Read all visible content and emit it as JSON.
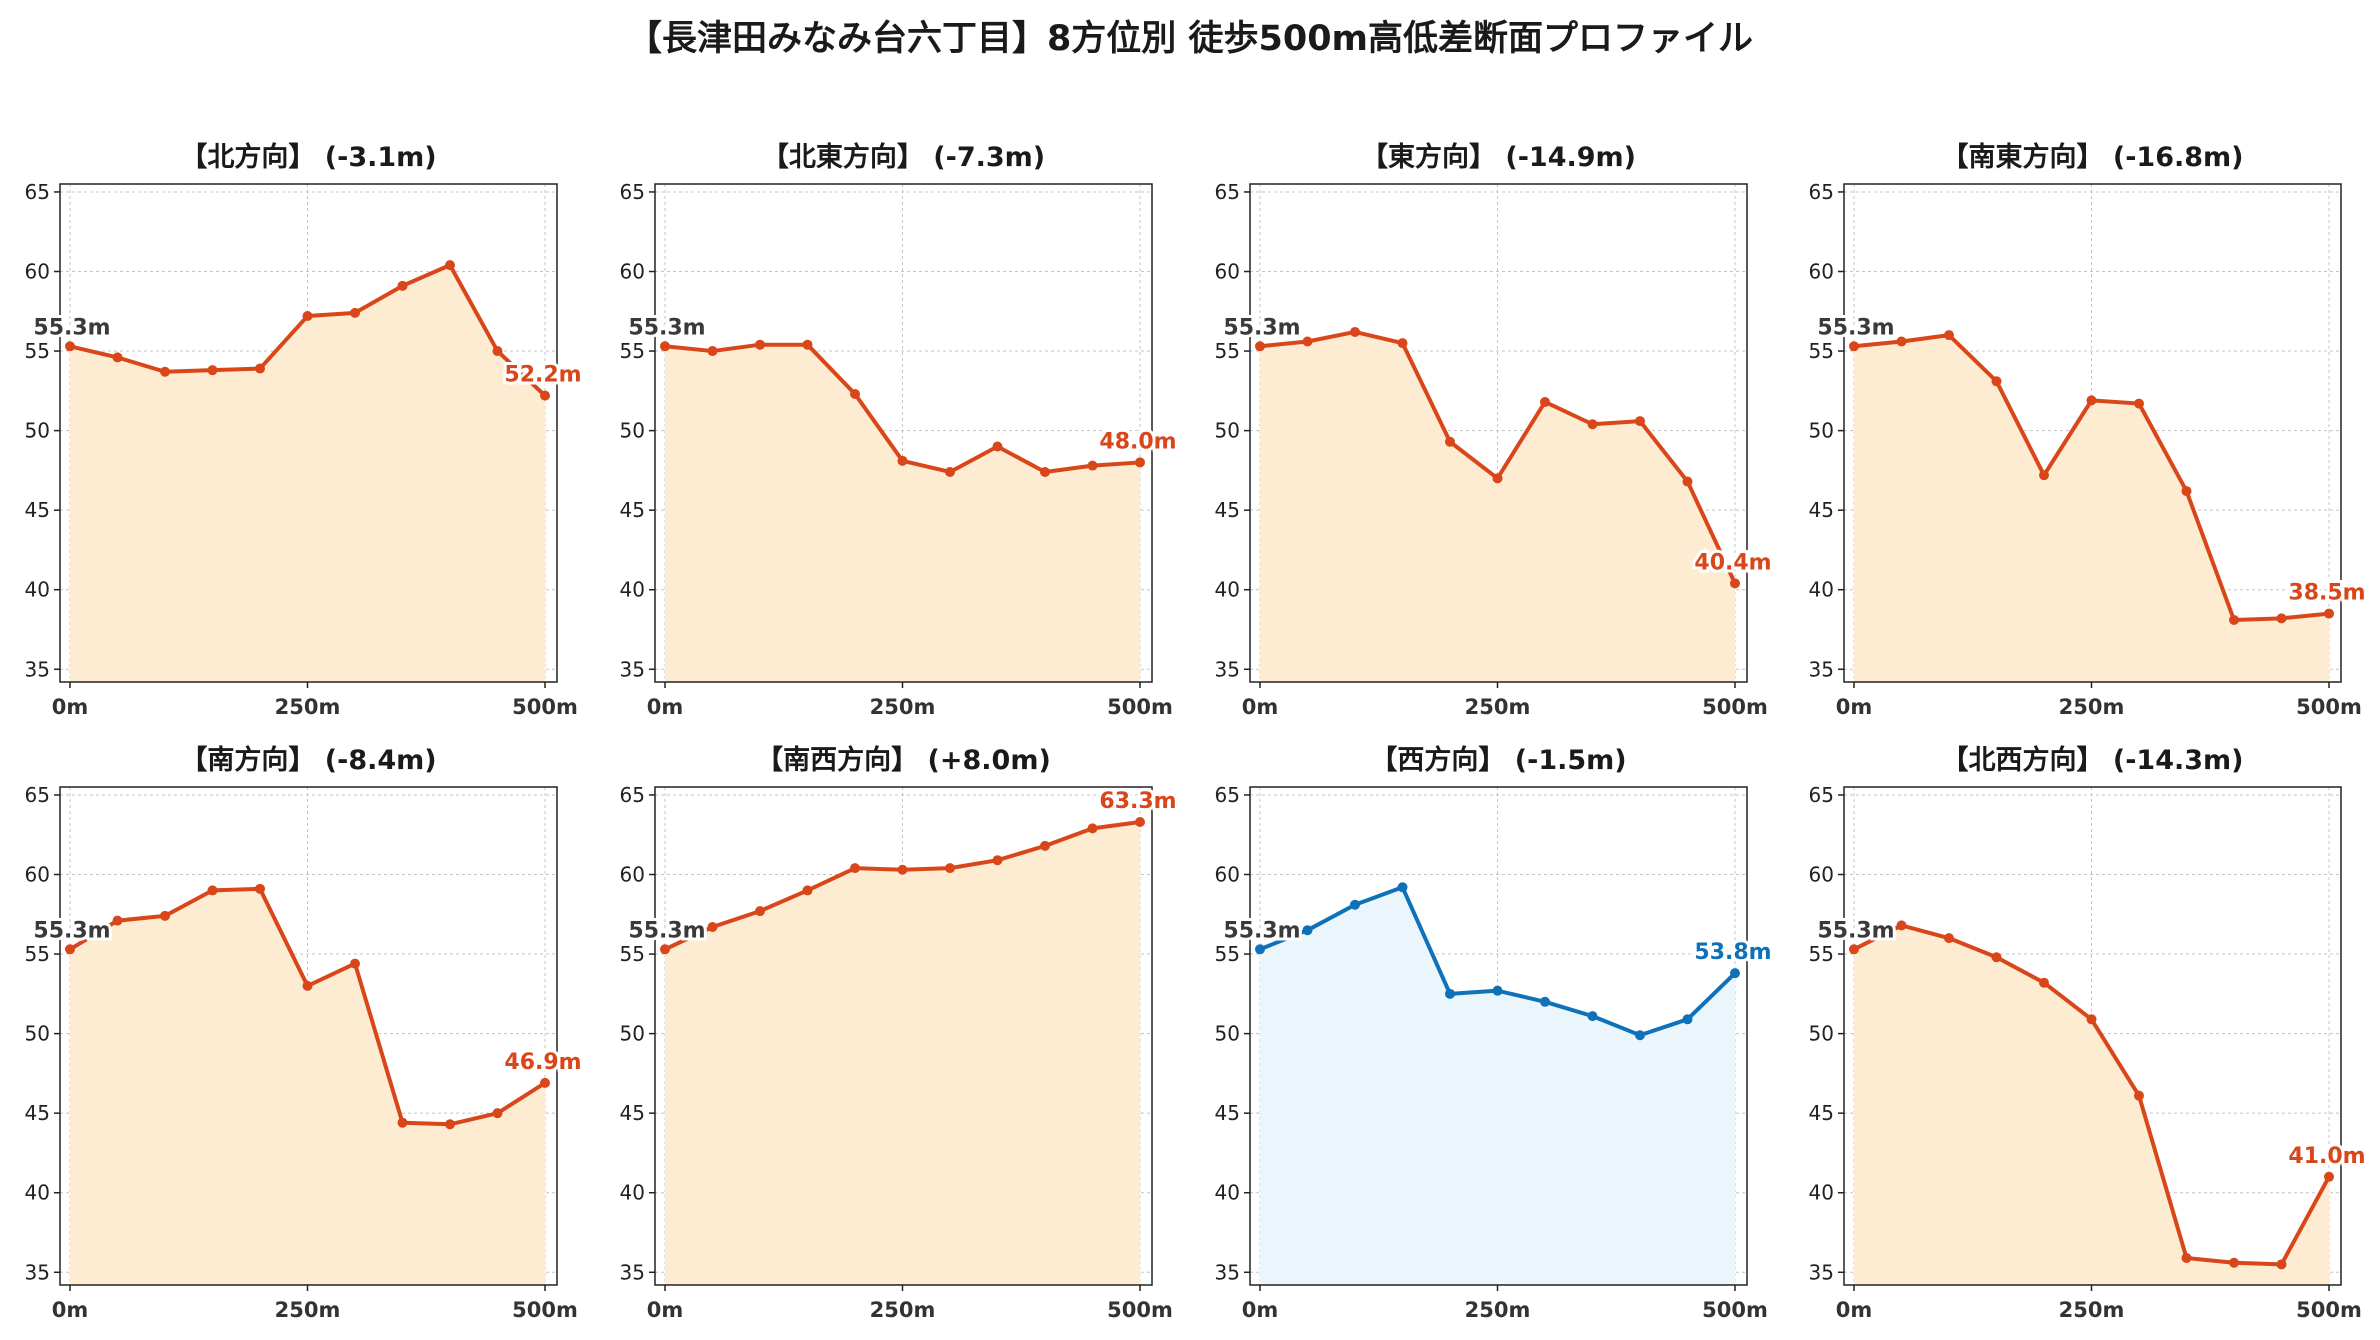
{
  "title": "【長津田みなみ台六丁目】8方位別 徒歩500m高低差断面プロファイル",
  "colors": {
    "descent": "#d9461a",
    "descent_fill": "#fdecd2",
    "ascent_flat": "#0f72b8",
    "ascent_fill": "#eaf6fc",
    "start_label": "#3a3a3a"
  },
  "chart_data": [
    {
      "type": "area",
      "title": "【北方向】 (-3.1m)",
      "x": [
        0,
        50,
        100,
        150,
        200,
        250,
        300,
        350,
        400,
        450,
        500
      ],
      "xtick_labels": [
        "0m",
        "250m",
        "500m"
      ],
      "xticks": [
        0,
        250,
        500
      ],
      "yticks": [
        35,
        40,
        45,
        50,
        55,
        60,
        65
      ],
      "ylim": [
        34.2,
        65.5
      ],
      "grid": true,
      "values": [
        55.3,
        54.6,
        53.7,
        53.8,
        53.9,
        57.2,
        57.4,
        59.1,
        60.4,
        55.0,
        52.2
      ],
      "start_label": "55.3m",
      "end_label": "52.2m",
      "style": "descent"
    },
    {
      "type": "area",
      "title": "【北東方向】 (-7.3m)",
      "x": [
        0,
        50,
        100,
        150,
        200,
        250,
        300,
        350,
        400,
        450,
        500
      ],
      "xtick_labels": [
        "0m",
        "250m",
        "500m"
      ],
      "xticks": [
        0,
        250,
        500
      ],
      "yticks": [
        35,
        40,
        45,
        50,
        55,
        60,
        65
      ],
      "ylim": [
        34.2,
        65.5
      ],
      "grid": true,
      "values": [
        55.3,
        55.0,
        55.4,
        55.4,
        52.3,
        48.1,
        47.4,
        49.0,
        47.4,
        47.8,
        48.0
      ],
      "start_label": "55.3m",
      "end_label": "48.0m",
      "style": "descent"
    },
    {
      "type": "area",
      "title": "【東方向】 (-14.9m)",
      "x": [
        0,
        50,
        100,
        150,
        200,
        250,
        300,
        350,
        400,
        450,
        500
      ],
      "xtick_labels": [
        "0m",
        "250m",
        "500m"
      ],
      "xticks": [
        0,
        250,
        500
      ],
      "yticks": [
        35,
        40,
        45,
        50,
        55,
        60,
        65
      ],
      "ylim": [
        34.2,
        65.5
      ],
      "grid": true,
      "values": [
        55.3,
        55.6,
        56.2,
        55.5,
        49.3,
        47.0,
        51.8,
        50.4,
        50.6,
        46.8,
        40.4
      ],
      "start_label": "55.3m",
      "end_label": "40.4m",
      "style": "descent"
    },
    {
      "type": "area",
      "title": "【南東方向】 (-16.8m)",
      "x": [
        0,
        50,
        100,
        150,
        200,
        250,
        300,
        350,
        400,
        450,
        500
      ],
      "xtick_labels": [
        "0m",
        "250m",
        "500m"
      ],
      "xticks": [
        0,
        250,
        500
      ],
      "yticks": [
        35,
        40,
        45,
        50,
        55,
        60,
        65
      ],
      "ylim": [
        34.2,
        65.5
      ],
      "grid": true,
      "values": [
        55.3,
        55.6,
        56.0,
        53.1,
        47.2,
        51.9,
        51.7,
        46.2,
        38.1,
        38.2,
        38.5
      ],
      "start_label": "55.3m",
      "end_label": "38.5m",
      "style": "descent"
    },
    {
      "type": "area",
      "title": "【南方向】 (-8.4m)",
      "x": [
        0,
        50,
        100,
        150,
        200,
        250,
        300,
        350,
        400,
        450,
        500
      ],
      "xtick_labels": [
        "0m",
        "250m",
        "500m"
      ],
      "xticks": [
        0,
        250,
        500
      ],
      "yticks": [
        35,
        40,
        45,
        50,
        55,
        60,
        65
      ],
      "ylim": [
        34.2,
        65.5
      ],
      "grid": true,
      "values": [
        55.3,
        57.1,
        57.4,
        59.0,
        59.1,
        53.0,
        54.4,
        44.4,
        44.3,
        45.0,
        46.9
      ],
      "start_label": "55.3m",
      "end_label": "46.9m",
      "style": "descent"
    },
    {
      "type": "area",
      "title": "【南西方向】 (+8.0m)",
      "x": [
        0,
        50,
        100,
        150,
        200,
        250,
        300,
        350,
        400,
        450,
        500
      ],
      "xtick_labels": [
        "0m",
        "250m",
        "500m"
      ],
      "xticks": [
        0,
        250,
        500
      ],
      "yticks": [
        35,
        40,
        45,
        50,
        55,
        60,
        65
      ],
      "ylim": [
        34.2,
        65.5
      ],
      "grid": true,
      "values": [
        55.3,
        56.7,
        57.7,
        59.0,
        60.4,
        60.3,
        60.4,
        60.9,
        61.8,
        62.9,
        63.3
      ],
      "start_label": "55.3m",
      "end_label": "63.3m",
      "style": "descent"
    },
    {
      "type": "area",
      "title": "【西方向】 (-1.5m)",
      "x": [
        0,
        50,
        100,
        150,
        200,
        250,
        300,
        350,
        400,
        450,
        500
      ],
      "xtick_labels": [
        "0m",
        "250m",
        "500m"
      ],
      "xticks": [
        0,
        250,
        500
      ],
      "yticks": [
        35,
        40,
        45,
        50,
        55,
        60,
        65
      ],
      "ylim": [
        34.2,
        65.5
      ],
      "grid": true,
      "values": [
        55.3,
        56.5,
        58.1,
        59.2,
        52.5,
        52.7,
        52.0,
        51.1,
        49.9,
        50.9,
        53.8
      ],
      "start_label": "55.3m",
      "end_label": "53.8m",
      "style": "ascent_flat"
    },
    {
      "type": "area",
      "title": "【北西方向】 (-14.3m)",
      "x": [
        0,
        50,
        100,
        150,
        200,
        250,
        300,
        350,
        400,
        450,
        500
      ],
      "xtick_labels": [
        "0m",
        "250m",
        "500m"
      ],
      "xticks": [
        0,
        250,
        500
      ],
      "yticks": [
        35,
        40,
        45,
        50,
        55,
        60,
        65
      ],
      "ylim": [
        34.2,
        65.5
      ],
      "grid": true,
      "values": [
        55.3,
        56.8,
        56.0,
        54.8,
        53.2,
        50.9,
        46.1,
        35.9,
        35.6,
        35.5,
        41.0
      ],
      "start_label": "55.3m",
      "end_label": "41.0m",
      "style": "descent"
    }
  ]
}
